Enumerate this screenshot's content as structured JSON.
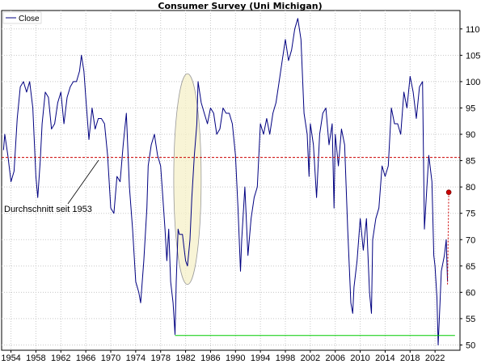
{
  "chart_data": {
    "type": "line",
    "title": "Consumer Survey (Uni Michigan)",
    "series": [
      {
        "name": "Close",
        "color": "#000080",
        "points": [
          [
            1952.8,
            87
          ],
          [
            1953.0,
            90
          ],
          [
            1953.5,
            86
          ],
          [
            1954.0,
            81
          ],
          [
            1954.5,
            83
          ],
          [
            1955.0,
            93
          ],
          [
            1955.5,
            99
          ],
          [
            1956.0,
            100
          ],
          [
            1956.5,
            98
          ],
          [
            1957.0,
            100
          ],
          [
            1957.5,
            95
          ],
          [
            1958.0,
            82
          ],
          [
            1958.3,
            78
          ],
          [
            1958.7,
            85
          ],
          [
            1959.0,
            92
          ],
          [
            1959.5,
            98
          ],
          [
            1960.0,
            97
          ],
          [
            1960.5,
            91
          ],
          [
            1961.0,
            92
          ],
          [
            1961.5,
            96
          ],
          [
            1962.0,
            98
          ],
          [
            1962.5,
            92
          ],
          [
            1963.0,
            97
          ],
          [
            1963.5,
            99
          ],
          [
            1964.0,
            100
          ],
          [
            1964.5,
            100
          ],
          [
            1965.0,
            102
          ],
          [
            1965.3,
            105
          ],
          [
            1965.7,
            102
          ],
          [
            1966.0,
            97
          ],
          [
            1966.5,
            89
          ],
          [
            1967.0,
            95
          ],
          [
            1967.5,
            91
          ],
          [
            1968.0,
            93
          ],
          [
            1968.5,
            93
          ],
          [
            1969.0,
            92
          ],
          [
            1969.5,
            86
          ],
          [
            1970.0,
            76
          ],
          [
            1970.5,
            75
          ],
          [
            1971.0,
            82
          ],
          [
            1971.5,
            81
          ],
          [
            1972.0,
            88
          ],
          [
            1972.5,
            94
          ],
          [
            1973.0,
            80
          ],
          [
            1973.5,
            72
          ],
          [
            1974.0,
            62
          ],
          [
            1974.5,
            60
          ],
          [
            1974.8,
            58
          ],
          [
            1975.3,
            66
          ],
          [
            1975.8,
            76
          ],
          [
            1976.0,
            84
          ],
          [
            1976.5,
            88
          ],
          [
            1977.0,
            90
          ],
          [
            1977.5,
            86
          ],
          [
            1978.0,
            84
          ],
          [
            1978.3,
            79
          ],
          [
            1978.7,
            72
          ],
          [
            1979.0,
            66
          ],
          [
            1979.3,
            72
          ],
          [
            1979.6,
            62
          ],
          [
            1980.0,
            58
          ],
          [
            1980.3,
            52
          ],
          [
            1980.5,
            62
          ],
          [
            1980.8,
            72
          ],
          [
            1981.0,
            71
          ],
          [
            1981.5,
            71
          ],
          [
            1981.8,
            68
          ],
          [
            1982.0,
            66
          ],
          [
            1982.3,
            65
          ],
          [
            1982.7,
            70
          ],
          [
            1983.0,
            78
          ],
          [
            1983.4,
            86
          ],
          [
            1983.8,
            92
          ],
          [
            1984.0,
            100
          ],
          [
            1984.5,
            96
          ],
          [
            1985.0,
            94
          ],
          [
            1985.5,
            92
          ],
          [
            1986.0,
            95
          ],
          [
            1986.5,
            94
          ],
          [
            1987.0,
            90
          ],
          [
            1987.5,
            91
          ],
          [
            1988.0,
            95
          ],
          [
            1988.5,
            94
          ],
          [
            1989.0,
            94
          ],
          [
            1989.5,
            92
          ],
          [
            1990.0,
            86
          ],
          [
            1990.4,
            76
          ],
          [
            1990.8,
            64
          ],
          [
            1991.0,
            70
          ],
          [
            1991.5,
            80
          ],
          [
            1992.0,
            67
          ],
          [
            1992.5,
            74
          ],
          [
            1993.0,
            78
          ],
          [
            1993.5,
            80
          ],
          [
            1994.0,
            92
          ],
          [
            1994.5,
            90
          ],
          [
            1995.0,
            93
          ],
          [
            1995.5,
            90
          ],
          [
            1996.0,
            94
          ],
          [
            1996.5,
            96
          ],
          [
            1997.0,
            100
          ],
          [
            1997.5,
            104
          ],
          [
            1998.0,
            108
          ],
          [
            1998.5,
            104
          ],
          [
            1999.0,
            106
          ],
          [
            1999.5,
            110
          ],
          [
            2000.0,
            112
          ],
          [
            2000.5,
            108
          ],
          [
            2001.0,
            94
          ],
          [
            2001.5,
            90
          ],
          [
            2001.8,
            82
          ],
          [
            2002.0,
            92
          ],
          [
            2002.5,
            88
          ],
          [
            2003.0,
            78
          ],
          [
            2003.5,
            90
          ],
          [
            2004.0,
            94
          ],
          [
            2004.5,
            95
          ],
          [
            2005.0,
            88
          ],
          [
            2005.5,
            92
          ],
          [
            2005.8,
            76
          ],
          [
            2006.0,
            90
          ],
          [
            2006.5,
            84
          ],
          [
            2007.0,
            91
          ],
          [
            2007.5,
            88
          ],
          [
            2008.0,
            72
          ],
          [
            2008.5,
            58
          ],
          [
            2008.8,
            56
          ],
          [
            2009.0,
            61
          ],
          [
            2009.5,
            66
          ],
          [
            2010.0,
            74
          ],
          [
            2010.5,
            68
          ],
          [
            2011.0,
            74
          ],
          [
            2011.5,
            60
          ],
          [
            2011.8,
            56
          ],
          [
            2012.0,
            70
          ],
          [
            2012.5,
            74
          ],
          [
            2013.0,
            76
          ],
          [
            2013.5,
            84
          ],
          [
            2014.0,
            82
          ],
          [
            2014.5,
            84
          ],
          [
            2015.0,
            95
          ],
          [
            2015.5,
            92
          ],
          [
            2016.0,
            92
          ],
          [
            2016.5,
            90
          ],
          [
            2017.0,
            98
          ],
          [
            2017.5,
            95
          ],
          [
            2018.0,
            101
          ],
          [
            2018.5,
            98
          ],
          [
            2019.0,
            93
          ],
          [
            2019.5,
            99
          ],
          [
            2020.0,
            100
          ],
          [
            2020.3,
            72
          ],
          [
            2020.6,
            78
          ],
          [
            2021.0,
            86
          ],
          [
            2021.5,
            81
          ],
          [
            2021.8,
            67
          ],
          [
            2022.0,
            65
          ],
          [
            2022.3,
            59
          ],
          [
            2022.5,
            50
          ],
          [
            2022.8,
            58
          ],
          [
            2023.0,
            64
          ],
          [
            2023.5,
            67
          ],
          [
            2023.8,
            70
          ],
          [
            2024.0,
            62
          ]
        ]
      }
    ],
    "reference_line": {
      "value": 85.6,
      "color": "#cc0000",
      "style": "dashed",
      "label": "Durchschnitt seit 1953"
    },
    "support_line": {
      "value": 51.8,
      "x_start": 1980.3,
      "x_end": 2025.2,
      "color": "#00cc00"
    },
    "forecast_point": {
      "x_start": 2024.0,
      "y_start": 61.5,
      "x": 2024.2,
      "y": 79.0,
      "color": "#cc0000"
    },
    "highlight": {
      "x_center": 1982.3,
      "y_center": 81.5,
      "x_radius": 2.2,
      "y_radius": 20,
      "color": "#f5f0c8"
    },
    "x_ticks": [
      "1954",
      "1958",
      "1962",
      "1966",
      "1970",
      "1974",
      "1978",
      "1982",
      "1986",
      "1990",
      "1994",
      "1998",
      "2002",
      "2006",
      "2010",
      "2014",
      "2018",
      "2022"
    ],
    "y_ticks": [
      50,
      55,
      60,
      65,
      70,
      75,
      80,
      85,
      90,
      95,
      100,
      105,
      110
    ],
    "xlim": [
      1952.5,
      2026.0
    ],
    "ylim": [
      49.0,
      113.5
    ],
    "grid": true,
    "legend": "top-left",
    "xlabel": "",
    "ylabel": ""
  }
}
